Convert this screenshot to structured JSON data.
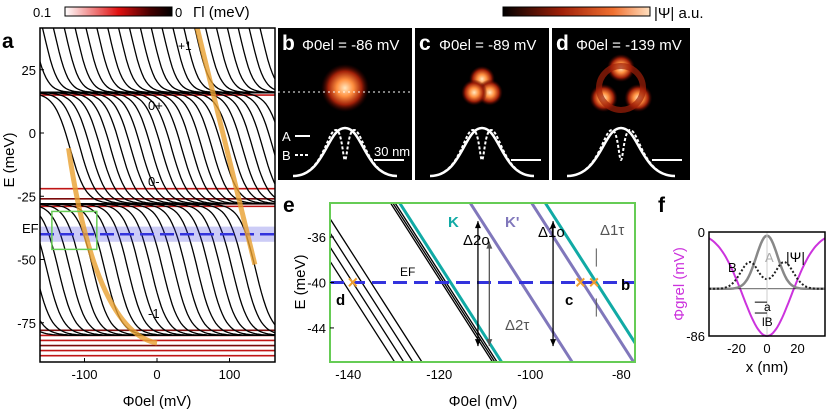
{
  "chart_data": [
    {
      "panel": "a",
      "type": "line",
      "xlabel": "Φ0el (mV)",
      "ylabel": "E (meV)",
      "xticks": [
        "-100",
        "0",
        "100"
      ],
      "yticks": [
        "25",
        "0",
        "-25",
        "-50",
        "-75"
      ],
      "xlim": [
        -161,
        163
      ],
      "ylim": [
        -90,
        41
      ],
      "colorbar": {
        "label": "Γl (meV)",
        "min_label": "0.1",
        "max_label": "0"
      },
      "annotations": [
        "+1",
        "0+",
        "0-",
        "-1",
        "EF"
      ],
      "landau_levels_meV": {
        "+1": 16,
        "0+": 16,
        "0-": -28,
        "-1": -80
      },
      "fermi_energy_meV": -40,
      "colors": {
        "lines": "#000000",
        "broadened": "#cc1010",
        "highlight": "#e8a030",
        "fermi": "#3333dd",
        "zoom_box": "#66cc55"
      }
    },
    {
      "panel": "b",
      "type": "heatmap",
      "title": "Φ0el = -86 mV",
      "legend": [
        "A",
        "B"
      ],
      "scalebar": "30 nm"
    },
    {
      "panel": "c",
      "type": "heatmap",
      "title": "Φ0el = -89 mV"
    },
    {
      "panel": "d",
      "type": "heatmap",
      "title": "Φ0el = -139 mV",
      "colorbar": {
        "label": "|Ψ| a.u."
      }
    },
    {
      "panel": "e",
      "type": "line",
      "xlabel": "Φ0el (mV)",
      "ylabel": "E (meV)",
      "xticks": [
        "-140",
        "-120",
        "-100",
        "-80"
      ],
      "yticks": [
        "-36",
        "-40",
        "-44"
      ],
      "xlim": [
        -144,
        -77
      ],
      "ylim": [
        -47,
        -33
      ],
      "fermi_energy_meV": -40,
      "labels": {
        "K": "K",
        "Kp": "K'",
        "EF": "EF",
        "b": "b",
        "c": "c",
        "d": "d",
        "d2o": "Δ2o",
        "d1o": "Δ1o",
        "d2t": "Δ2τ",
        "d1t": "Δ1τ"
      },
      "crossings_mV": [
        -139,
        -89,
        -86
      ],
      "colors": {
        "K": "#11aaa5",
        "Kp": "#8077bb",
        "cross": "#f0a030"
      }
    },
    {
      "panel": "f",
      "type": "line",
      "xlabel": "x (nm)",
      "ylabel": "Φgrel (mV)",
      "xticks": [
        "-20",
        "0",
        "20"
      ],
      "yticks": [
        "0",
        "-86"
      ],
      "xlim": [
        -38,
        38
      ],
      "ylim": [
        -86,
        0
      ],
      "labels": {
        "psi": "|Ψ|",
        "A": "A",
        "B": "B",
        "a": "a",
        "lB": "lB"
      },
      "colors": {
        "potential": "#cc33dd",
        "A": "#888888",
        "B": "#222222"
      }
    }
  ]
}
